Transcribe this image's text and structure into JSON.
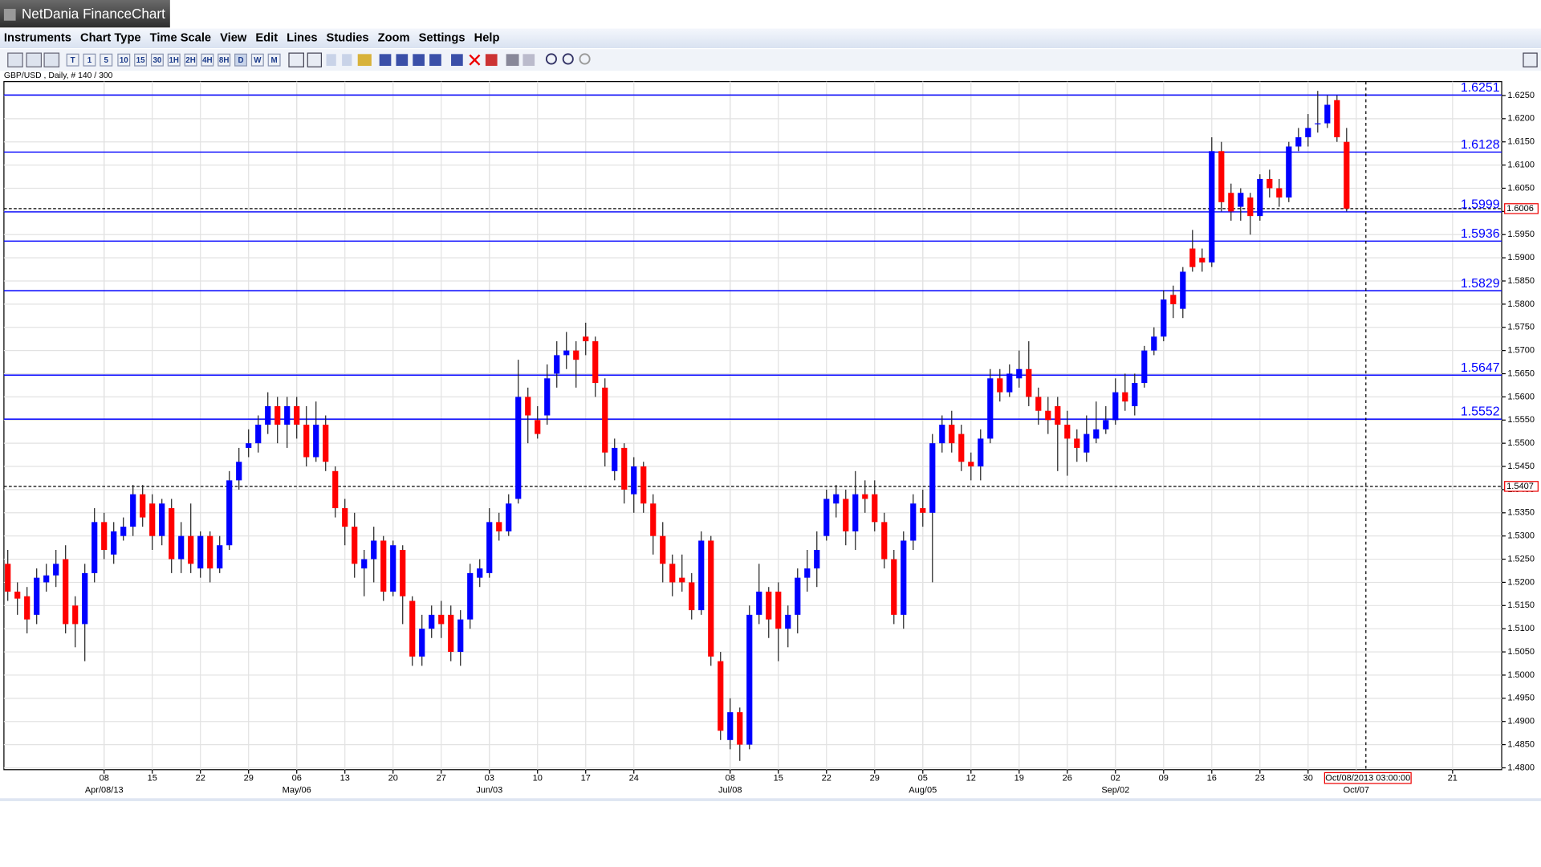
{
  "window": {
    "title": "NetDania FinanceChart"
  },
  "menu": [
    "Instruments",
    "Chart Type",
    "Time Scale",
    "View",
    "Edit",
    "Lines",
    "Studies",
    "Zoom",
    "Settings",
    "Help"
  ],
  "toolbar": {
    "labels": [
      "T",
      "1",
      "5",
      "10",
      "15",
      "30",
      "1H",
      "2H",
      "4H",
      "8H",
      "D",
      "W",
      "M"
    ]
  },
  "chart_data": {
    "type": "candlestick",
    "title": "GBP/USD , Daily, # 140 / 300",
    "up_color": "#0000ff",
    "down_color": "#ff0000",
    "ohlc": [
      [
        1.524,
        1.527,
        1.516,
        1.518
      ],
      [
        1.518,
        1.52,
        1.513,
        1.5165
      ],
      [
        1.517,
        1.519,
        1.509,
        1.512
      ],
      [
        1.513,
        1.523,
        1.511,
        1.521
      ],
      [
        1.52,
        1.524,
        1.518,
        1.5215
      ],
      [
        1.5215,
        1.527,
        1.519,
        1.524
      ],
      [
        1.525,
        1.528,
        1.509,
        1.511
      ],
      [
        1.515,
        1.517,
        1.506,
        1.511
      ],
      [
        1.511,
        1.524,
        1.503,
        1.522
      ],
      [
        1.522,
        1.536,
        1.52,
        1.533
      ],
      [
        1.533,
        1.535,
        1.525,
        1.527
      ],
      [
        1.526,
        1.533,
        1.524,
        1.531
      ],
      [
        1.53,
        1.534,
        1.529,
        1.532
      ],
      [
        1.532,
        1.541,
        1.53,
        1.539
      ],
      [
        1.539,
        1.541,
        1.532,
        1.534
      ],
      [
        1.537,
        1.539,
        1.527,
        1.53
      ],
      [
        1.53,
        1.538,
        1.528,
        1.537
      ],
      [
        1.536,
        1.538,
        1.522,
        1.525
      ],
      [
        1.525,
        1.533,
        1.522,
        1.53
      ],
      [
        1.53,
        1.537,
        1.522,
        1.524
      ],
      [
        1.523,
        1.531,
        1.521,
        1.53
      ],
      [
        1.53,
        1.531,
        1.52,
        1.523
      ],
      [
        1.523,
        1.53,
        1.522,
        1.528
      ],
      [
        1.528,
        1.544,
        1.527,
        1.542
      ],
      [
        1.542,
        1.549,
        1.54,
        1.546
      ],
      [
        1.549,
        1.553,
        1.547,
        1.55
      ],
      [
        1.55,
        1.556,
        1.548,
        1.554
      ],
      [
        1.554,
        1.561,
        1.552,
        1.558
      ],
      [
        1.558,
        1.56,
        1.55,
        1.554
      ],
      [
        1.554,
        1.56,
        1.549,
        1.558
      ],
      [
        1.558,
        1.56,
        1.551,
        1.554
      ],
      [
        1.554,
        1.558,
        1.545,
        1.547
      ],
      [
        1.547,
        1.559,
        1.546,
        1.554
      ],
      [
        1.554,
        1.556,
        1.544,
        1.546
      ],
      [
        1.544,
        1.545,
        1.534,
        1.536
      ],
      [
        1.536,
        1.538,
        1.528,
        1.532
      ],
      [
        1.532,
        1.535,
        1.521,
        1.524
      ],
      [
        1.523,
        1.527,
        1.517,
        1.525
      ],
      [
        1.525,
        1.532,
        1.52,
        1.529
      ],
      [
        1.529,
        1.53,
        1.516,
        1.518
      ],
      [
        1.518,
        1.529,
        1.517,
        1.528
      ],
      [
        1.527,
        1.528,
        1.511,
        1.517
      ],
      [
        1.516,
        1.517,
        1.502,
        1.504
      ],
      [
        1.504,
        1.513,
        1.502,
        1.51
      ],
      [
        1.51,
        1.515,
        1.508,
        1.513
      ],
      [
        1.513,
        1.516,
        1.508,
        1.511
      ],
      [
        1.513,
        1.515,
        1.503,
        1.505
      ],
      [
        1.505,
        1.514,
        1.502,
        1.512
      ],
      [
        1.512,
        1.524,
        1.51,
        1.522
      ],
      [
        1.521,
        1.525,
        1.519,
        1.523
      ],
      [
        1.522,
        1.536,
        1.521,
        1.533
      ],
      [
        1.533,
        1.535,
        1.529,
        1.531
      ],
      [
        1.531,
        1.539,
        1.53,
        1.537
      ],
      [
        1.538,
        1.568,
        1.537,
        1.56
      ],
      [
        1.56,
        1.562,
        1.55,
        1.556
      ],
      [
        1.555,
        1.558,
        1.551,
        1.552
      ],
      [
        1.556,
        1.567,
        1.554,
        1.564
      ],
      [
        1.565,
        1.572,
        1.562,
        1.569
      ],
      [
        1.569,
        1.574,
        1.566,
        1.57
      ],
      [
        1.57,
        1.572,
        1.562,
        1.568
      ],
      [
        1.573,
        1.576,
        1.569,
        1.572
      ],
      [
        1.572,
        1.573,
        1.56,
        1.563
      ],
      [
        1.562,
        1.564,
        1.545,
        1.548
      ],
      [
        1.544,
        1.551,
        1.542,
        1.549
      ],
      [
        1.549,
        1.55,
        1.537,
        1.54
      ],
      [
        1.539,
        1.547,
        1.535,
        1.545
      ],
      [
        1.545,
        1.546,
        1.535,
        1.537
      ],
      [
        1.537,
        1.539,
        1.526,
        1.53
      ],
      [
        1.53,
        1.533,
        1.52,
        1.524
      ],
      [
        1.524,
        1.526,
        1.517,
        1.52
      ],
      [
        1.521,
        1.526,
        1.518,
        1.52
      ],
      [
        1.52,
        1.522,
        1.512,
        1.514
      ],
      [
        1.514,
        1.531,
        1.513,
        1.529
      ],
      [
        1.529,
        1.53,
        1.502,
        1.504
      ],
      [
        1.503,
        1.505,
        1.486,
        1.488
      ],
      [
        1.486,
        1.495,
        1.484,
        1.492
      ],
      [
        1.492,
        1.493,
        1.4815,
        1.485
      ],
      [
        1.485,
        1.515,
        1.484,
        1.513
      ],
      [
        1.513,
        1.524,
        1.511,
        1.518
      ],
      [
        1.518,
        1.519,
        1.508,
        1.512
      ],
      [
        1.518,
        1.52,
        1.503,
        1.51
      ],
      [
        1.51,
        1.515,
        1.506,
        1.513
      ],
      [
        1.513,
        1.523,
        1.509,
        1.521
      ],
      [
        1.521,
        1.527,
        1.518,
        1.523
      ],
      [
        1.523,
        1.531,
        1.519,
        1.527
      ],
      [
        1.53,
        1.54,
        1.529,
        1.538
      ],
      [
        1.537,
        1.541,
        1.534,
        1.539
      ],
      [
        1.538,
        1.54,
        1.528,
        1.531
      ],
      [
        1.531,
        1.544,
        1.527,
        1.539
      ],
      [
        1.539,
        1.542,
        1.535,
        1.538
      ],
      [
        1.539,
        1.542,
        1.531,
        1.533
      ],
      [
        1.533,
        1.535,
        1.523,
        1.525
      ],
      [
        1.525,
        1.527,
        1.511,
        1.513
      ],
      [
        1.513,
        1.531,
        1.51,
        1.529
      ],
      [
        1.529,
        1.539,
        1.527,
        1.537
      ],
      [
        1.536,
        1.54,
        1.532,
        1.535
      ],
      [
        1.535,
        1.552,
        1.52,
        1.55
      ],
      [
        1.55,
        1.556,
        1.548,
        1.554
      ],
      [
        1.554,
        1.557,
        1.548,
        1.55
      ],
      [
        1.552,
        1.554,
        1.544,
        1.546
      ],
      [
        1.546,
        1.548,
        1.542,
        1.545
      ],
      [
        1.545,
        1.553,
        1.542,
        1.551
      ],
      [
        1.551,
        1.566,
        1.55,
        1.564
      ],
      [
        1.564,
        1.566,
        1.559,
        1.561
      ],
      [
        1.561,
        1.567,
        1.56,
        1.565
      ],
      [
        1.564,
        1.57,
        1.562,
        1.566
      ],
      [
        1.566,
        1.572,
        1.558,
        1.56
      ],
      [
        1.56,
        1.562,
        1.554,
        1.557
      ],
      [
        1.557,
        1.56,
        1.552,
        1.555
      ],
      [
        1.558,
        1.56,
        1.544,
        1.554
      ],
      [
        1.554,
        1.557,
        1.543,
        1.551
      ],
      [
        1.551,
        1.553,
        1.546,
        1.549
      ],
      [
        1.548,
        1.556,
        1.546,
        1.552
      ],
      [
        1.551,
        1.559,
        1.55,
        1.553
      ],
      [
        1.553,
        1.558,
        1.552,
        1.555
      ],
      [
        1.555,
        1.564,
        1.554,
        1.561
      ],
      [
        1.561,
        1.565,
        1.557,
        1.559
      ],
      [
        1.558,
        1.565,
        1.556,
        1.563
      ],
      [
        1.563,
        1.571,
        1.562,
        1.57
      ],
      [
        1.57,
        1.575,
        1.569,
        1.573
      ],
      [
        1.573,
        1.583,
        1.572,
        1.581
      ],
      [
        1.582,
        1.584,
        1.577,
        1.58
      ],
      [
        1.579,
        1.588,
        1.577,
        1.587
      ],
      [
        1.592,
        1.596,
        1.587,
        1.588
      ],
      [
        1.59,
        1.592,
        1.587,
        1.589
      ],
      [
        1.589,
        1.616,
        1.588,
        1.613
      ],
      [
        1.613,
        1.615,
        1.6,
        1.602
      ],
      [
        1.604,
        1.606,
        1.598,
        1.6
      ],
      [
        1.601,
        1.605,
        1.598,
        1.604
      ],
      [
        1.603,
        1.604,
        1.595,
        1.599
      ],
      [
        1.599,
        1.608,
        1.598,
        1.607
      ],
      [
        1.607,
        1.609,
        1.603,
        1.605
      ],
      [
        1.605,
        1.607,
        1.601,
        1.603
      ],
      [
        1.603,
        1.615,
        1.602,
        1.614
      ],
      [
        1.614,
        1.618,
        1.613,
        1.616
      ],
      [
        1.616,
        1.621,
        1.614,
        1.618
      ],
      [
        1.619,
        1.626,
        1.617,
        1.619
      ],
      [
        1.619,
        1.625,
        1.618,
        1.623
      ],
      [
        1.624,
        1.625,
        1.615,
        1.616
      ],
      [
        1.615,
        1.618,
        1.6,
        1.6006
      ]
    ],
    "xlim": [
      -0.4,
      155.1
    ],
    "ylim": [
      1.4796,
      1.628
    ],
    "xticks": [
      {
        "value": 10,
        "label": "08"
      },
      {
        "value": 15,
        "label": "15"
      },
      {
        "value": 20,
        "label": "22"
      },
      {
        "value": 25,
        "label": "29"
      },
      {
        "value": 30,
        "label": "06"
      },
      {
        "value": 35,
        "label": "13"
      },
      {
        "value": 40,
        "label": "20"
      },
      {
        "value": 45,
        "label": "27"
      },
      {
        "value": 50,
        "label": "03"
      },
      {
        "value": 55,
        "label": "10"
      },
      {
        "value": 60,
        "label": "17"
      },
      {
        "value": 65,
        "label": "24"
      },
      {
        "value": 75,
        "label": "08"
      },
      {
        "value": 80,
        "label": "15"
      },
      {
        "value": 85,
        "label": "22"
      },
      {
        "value": 90,
        "label": "29"
      },
      {
        "value": 95,
        "label": "05"
      },
      {
        "value": 100,
        "label": "12"
      },
      {
        "value": 105,
        "label": "19"
      },
      {
        "value": 110,
        "label": "26"
      },
      {
        "value": 115,
        "label": "02"
      },
      {
        "value": 120,
        "label": "09"
      },
      {
        "value": 125,
        "label": "16"
      },
      {
        "value": 130,
        "label": "23"
      },
      {
        "value": 135,
        "label": "30"
      },
      {
        "value": 150,
        "label": "21"
      }
    ],
    "month_ticks": [
      {
        "value": 10,
        "label": "Apr/08/13"
      },
      {
        "value": 30,
        "label": "May/06"
      },
      {
        "value": 50,
        "label": "Jun/03"
      },
      {
        "value": 75,
        "label": "Jul/08"
      },
      {
        "value": 95,
        "label": "Aug/05"
      },
      {
        "value": 115,
        "label": "Sep/02"
      },
      {
        "value": 140,
        "label": "Oct/07"
      }
    ],
    "yticks": [
      {
        "value": 1.48,
        "label": "1.4800"
      },
      {
        "value": 1.485,
        "label": "1.4850"
      },
      {
        "value": 1.49,
        "label": "1.4900"
      },
      {
        "value": 1.495,
        "label": "1.4950"
      },
      {
        "value": 1.5,
        "label": "1.5000"
      },
      {
        "value": 1.505,
        "label": "1.5050"
      },
      {
        "value": 1.51,
        "label": "1.5100"
      },
      {
        "value": 1.515,
        "label": "1.5150"
      },
      {
        "value": 1.52,
        "label": "1.5200"
      },
      {
        "value": 1.525,
        "label": "1.5250"
      },
      {
        "value": 1.53,
        "label": "1.5300"
      },
      {
        "value": 1.535,
        "label": "1.5350"
      },
      {
        "value": 1.54,
        "label": "1.5400"
      },
      {
        "value": 1.545,
        "label": "1.5450"
      },
      {
        "value": 1.55,
        "label": "1.5500"
      },
      {
        "value": 1.555,
        "label": "1.5550"
      },
      {
        "value": 1.56,
        "label": "1.5600"
      },
      {
        "value": 1.565,
        "label": "1.5650"
      },
      {
        "value": 1.57,
        "label": "1.5700"
      },
      {
        "value": 1.575,
        "label": "1.5750"
      },
      {
        "value": 1.58,
        "label": "1.5800"
      },
      {
        "value": 1.585,
        "label": "1.5850"
      },
      {
        "value": 1.59,
        "label": "1.5900"
      },
      {
        "value": 1.595,
        "label": "1.5950"
      },
      {
        "value": 1.6,
        "label": "1.6000"
      },
      {
        "value": 1.605,
        "label": "1.6050"
      },
      {
        "value": 1.61,
        "label": "1.6100"
      },
      {
        "value": 1.615,
        "label": "1.6150"
      },
      {
        "value": 1.62,
        "label": "1.6200"
      },
      {
        "value": 1.625,
        "label": "1.6250"
      }
    ],
    "grid": true,
    "levels": [
      1.6251,
      1.6128,
      1.5999,
      1.5936,
      1.5829,
      1.5647,
      1.5552
    ],
    "level_color": "#0000ff",
    "price_markers": [
      1.6006,
      1.5407
    ],
    "cursor": {
      "x": 141,
      "label": "Oct/08/2013 03:00:00"
    }
  }
}
